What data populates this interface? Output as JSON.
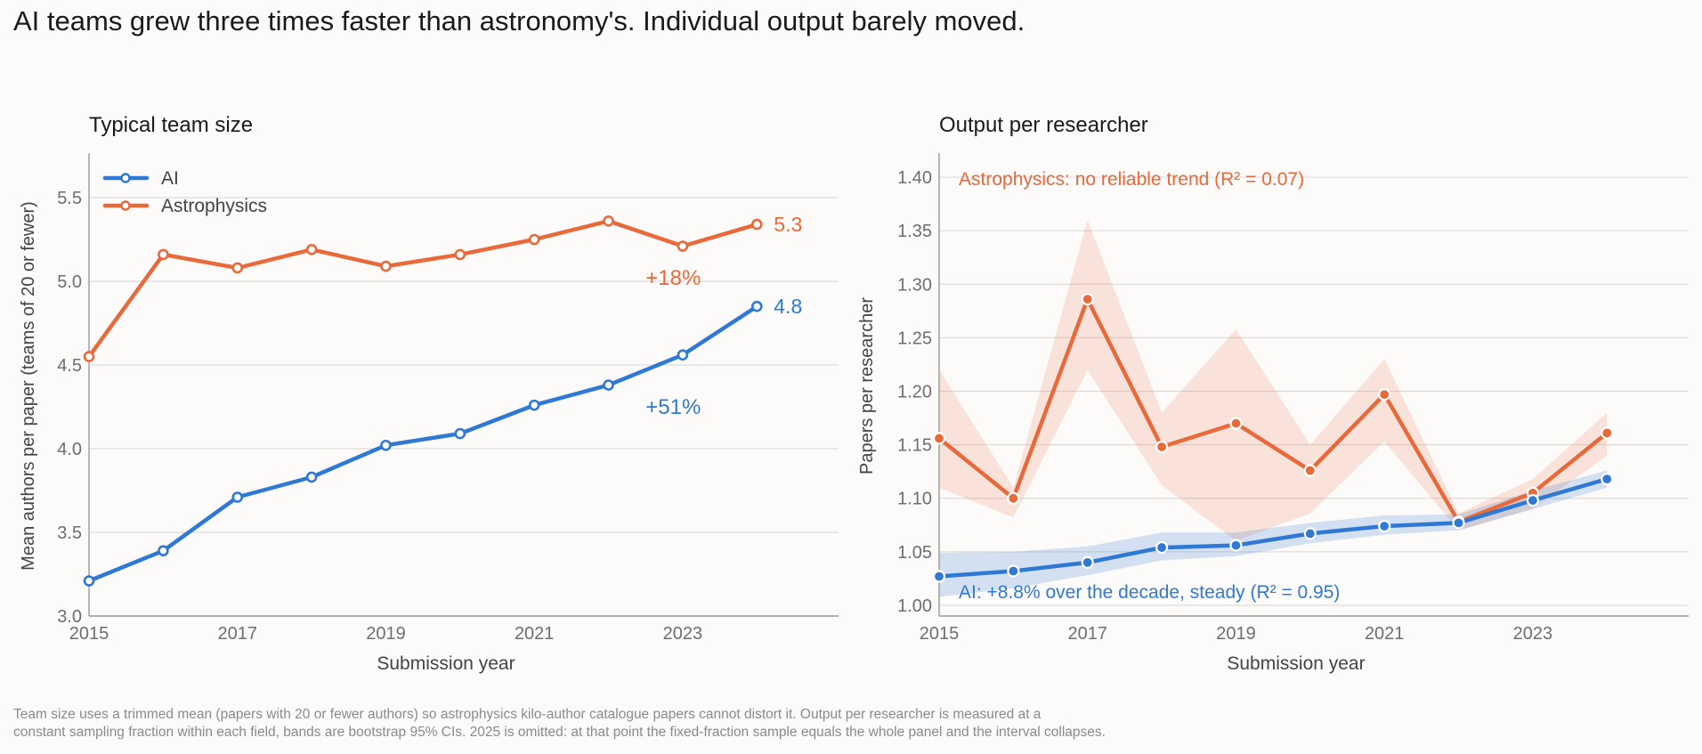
{
  "headline": "AI teams grew three times faster than astronomy's. Individual output barely moved.",
  "footnote": {
    "line1": "Team size uses a trimmed mean (papers with 20 or fewer authors) so astrophysics kilo-author catalogue papers cannot distort it. Output per researcher is measured at a",
    "line2": "constant sampling fraction within each field, bands are bootstrap 95% CIs. 2025 is omitted: at that point the fixed-fraction sample equals the whole panel and the interval collapses."
  },
  "colors": {
    "ai": "#2f78d4",
    "astro": "#e8693a",
    "axis": "#9a9a9a",
    "grid": "#dcdcdc",
    "text": "#555555"
  },
  "chart_data": [
    {
      "type": "line",
      "title": "Typical team size",
      "xlabel": "Submission year",
      "ylabel": "Mean authors per paper (teams of 20 or fewer)",
      "xlim": [
        2015,
        2025.1
      ],
      "ylim": [
        3.0,
        5.75
      ],
      "xticks": [
        "2015",
        "2017",
        "2019",
        "2021",
        "2023"
      ],
      "yticks": [
        "3.0",
        "3.5",
        "4.0",
        "4.5",
        "5.0",
        "5.5"
      ],
      "grid": "horizontal",
      "legend": {
        "position": "top-left",
        "entries": [
          "AI",
          "Astrophysics"
        ]
      },
      "x": [
        2015,
        2016,
        2017,
        2018,
        2019,
        2020,
        2021,
        2022,
        2023,
        2024
      ],
      "series": [
        {
          "name": "AI",
          "color_key": "ai",
          "values": [
            3.21,
            3.39,
            3.71,
            3.83,
            4.02,
            4.09,
            4.26,
            4.38,
            4.56,
            4.85
          ],
          "end_label": "4.8",
          "change_label": "+51%"
        },
        {
          "name": "Astrophysics",
          "color_key": "astro",
          "values": [
            4.55,
            5.16,
            5.08,
            5.19,
            5.09,
            5.16,
            5.25,
            5.36,
            5.21,
            5.34
          ],
          "end_label": "5.3",
          "change_label": "+18%"
        }
      ]
    },
    {
      "type": "line",
      "title": "Output per researcher",
      "xlabel": "Submission year",
      "ylabel": "Papers per researcher",
      "xlim": [
        2015,
        2025.1
      ],
      "ylim": [
        0.99,
        1.42
      ],
      "xticks": [
        "2015",
        "2017",
        "2019",
        "2021",
        "2023"
      ],
      "yticks": [
        "1.00",
        "1.05",
        "1.10",
        "1.15",
        "1.20",
        "1.25",
        "1.30",
        "1.35",
        "1.40"
      ],
      "grid": "horizontal",
      "x": [
        2015,
        2016,
        2017,
        2018,
        2019,
        2020,
        2021,
        2022,
        2023,
        2024
      ],
      "series": [
        {
          "name": "AI",
          "color_key": "ai",
          "values": [
            1.027,
            1.032,
            1.04,
            1.054,
            1.056,
            1.067,
            1.074,
            1.077,
            1.098,
            1.118
          ],
          "lower": [
            1.008,
            1.016,
            1.028,
            1.042,
            1.046,
            1.058,
            1.066,
            1.07,
            1.09,
            1.11
          ],
          "upper": [
            1.049,
            1.05,
            1.055,
            1.068,
            1.068,
            1.077,
            1.084,
            1.085,
            1.107,
            1.126
          ],
          "annotation": "AI: +8.8% over the decade, steady (R² = 0.95)"
        },
        {
          "name": "Astrophysics",
          "color_key": "astro",
          "values": [
            1.156,
            1.1,
            1.286,
            1.148,
            1.17,
            1.126,
            1.197,
            1.078,
            1.105,
            1.161
          ],
          "lower": [
            1.11,
            1.082,
            1.22,
            1.112,
            1.06,
            1.086,
            1.153,
            1.07,
            1.09,
            1.14
          ],
          "upper": [
            1.22,
            1.11,
            1.36,
            1.18,
            1.258,
            1.15,
            1.23,
            1.086,
            1.118,
            1.18
          ],
          "annotation": "Astrophysics: no reliable trend (R² = 0.07)"
        }
      ]
    }
  ]
}
